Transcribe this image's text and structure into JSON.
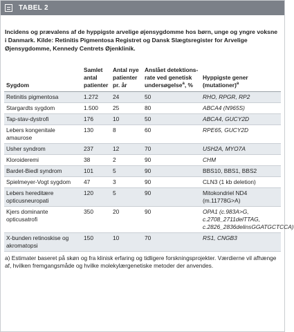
{
  "header": {
    "title": "TABEL 2"
  },
  "caption": "Incidens og prævalens af de hyppigste arvelige øjensygdomme hos børn, unge og yngre voksne i Danmark. Kilde: Retinitis Pigmentosa Registret og Dansk Slægtsregister for Arvelige Øjensygdomme, Kennedy Centrets Øjenklinik.",
  "table": {
    "columns": [
      {
        "text": "Sygdom"
      },
      {
        "text": "Samlet antal patienter"
      },
      {
        "text": "Antal nye patienter pr. år"
      },
      {
        "text": "Anslået detektions-rate ved genetisk undersøgelse",
        "sup": "a",
        "suffix": ", %"
      },
      {
        "text": "Hyppigste gener (mutationer)",
        "sup": "a"
      }
    ],
    "rows": [
      [
        "Retinitis pigmentosa",
        "1.272",
        "24",
        "50",
        "RHO, RPGR, RP2"
      ],
      [
        "Stargardts sygdom",
        "1.500",
        "25",
        "80",
        "ABCA4 (N965S)"
      ],
      [
        "Tap-stav-dystrofi",
        "176",
        "10",
        "50",
        "ABCA4, GUCY2D"
      ],
      [
        "Lebers kongenitale amaurose",
        "130",
        "8",
        "60",
        "RPE65, GUCY2D"
      ],
      [
        "Usher syndrom",
        "237",
        "12",
        "70",
        "USH2A, MYO7A"
      ],
      [
        "Kloroideremi",
        "38",
        "2",
        "90",
        "CHM"
      ],
      [
        "Bardet-Biedl syndrom",
        "101",
        "5",
        "90",
        "BBS10, BBS1, BBS2"
      ],
      [
        "Spielmeyer-Vogt sygdom",
        "47",
        "3",
        "90",
        "CLN3 (1 kb deletion)"
      ],
      [
        "Lebers hereditære opticusneuropati",
        "120",
        "5",
        "90",
        "Mitokondriel ND4 (m.11778G>A)"
      ],
      [
        "Kjers dominante opticusatrofi",
        "350",
        "20",
        "90",
        "OPA1 (c.983A>G, c.2708_2711delTTAG, c.2826_2836delinsGGATGCTCCA)"
      ],
      [
        "X-bunden retinoskise og akromatopsi",
        "150",
        "10",
        "70",
        "RS1, CNGB3"
      ]
    ]
  },
  "footnote": "a) Estimater baseret på skøn og fra klinisk erfaring og tidligere forskningsprojekter. Værdierne vil afhænge af, hvilken fremgangsmåde og hvilke molekylærgenetiske metoder der anvendes."
}
